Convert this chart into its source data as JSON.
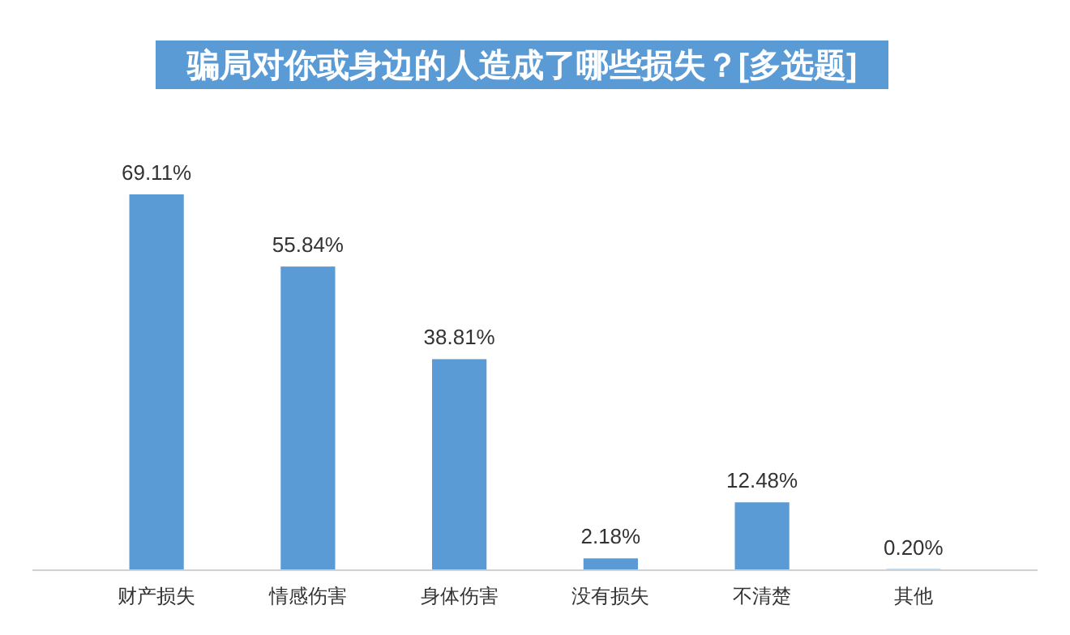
{
  "chart_data": {
    "type": "bar",
    "title": "骗局对你或身边的人造成了哪些损失？[多选题]",
    "categories": [
      "财产损失",
      "情感伤害",
      "身体伤害",
      "没有损失",
      "不清楚",
      "其他"
    ],
    "values": [
      69.11,
      55.84,
      38.81,
      2.18,
      12.48,
      0.2
    ],
    "value_labels": [
      "69.11%",
      "55.84%",
      "38.81%",
      "2.18%",
      "12.48%",
      "0.20%"
    ],
    "color": "#5b9bd5"
  }
}
